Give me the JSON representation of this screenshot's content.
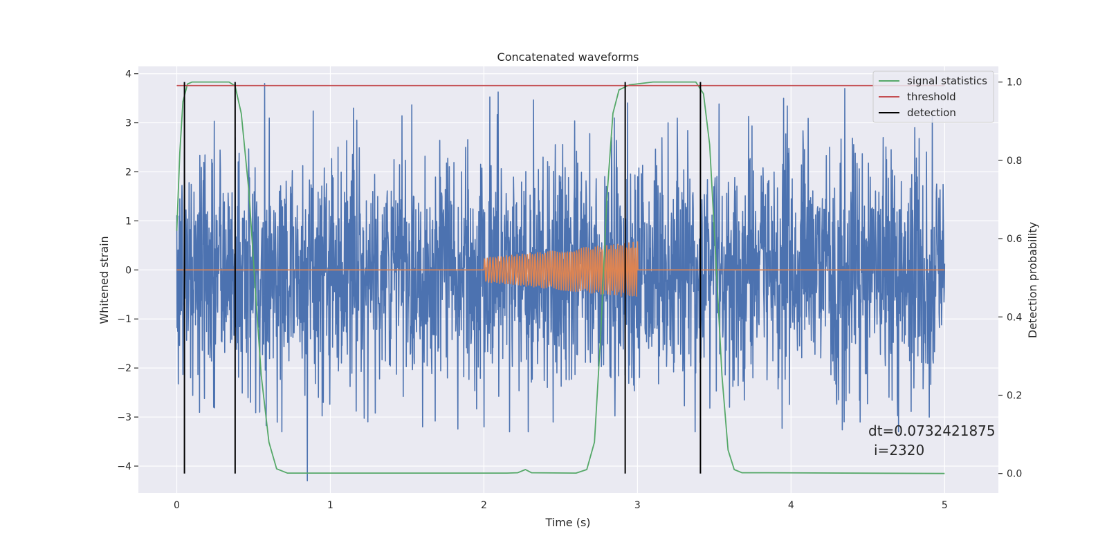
{
  "chart_data": {
    "type": "line",
    "title": "Concatenated waveforms",
    "xlabel": "Time (s)",
    "ylabel": "Whitened strain",
    "y2label": "Detection probability",
    "xlim": [
      -0.25,
      5.35
    ],
    "ylim": [
      -4.55,
      4.15
    ],
    "y2lim": [
      -0.05,
      1.04
    ],
    "x_ticks": [
      0,
      1,
      2,
      3,
      4,
      5
    ],
    "y_ticks": [
      -4,
      -3,
      -2,
      -1,
      0,
      1,
      2,
      3,
      4
    ],
    "y2_ticks": [
      0.0,
      0.2,
      0.4,
      0.6,
      0.8,
      1.0
    ],
    "x_tick_labels": [
      "0",
      "1",
      "2",
      "3",
      "4",
      "5"
    ],
    "y_tick_labels": [
      "−4",
      "−3",
      "−2",
      "−1",
      "0",
      "1",
      "2",
      "3",
      "4"
    ],
    "y2_tick_labels": [
      "0.0",
      "0.2",
      "0.4",
      "0.6",
      "0.8",
      "1.0"
    ],
    "grid": true,
    "legend_position": "top-right",
    "colors": {
      "strain": "#4c72b0",
      "injected": "#dd8452",
      "signal_statistics": "#55a868",
      "threshold": "#c44e52",
      "detection": "#000000",
      "axes_bg": "#eaeaf2",
      "grid": "#ffffff"
    },
    "series": [
      {
        "name": "",
        "axis": "left",
        "role": "strain",
        "x_range": [
          0,
          5
        ],
        "sample_count": 2500,
        "typical_amplitude": 1.2,
        "peaks": [
          [
            0.05,
            2.4
          ],
          [
            0.09,
            -2.2
          ],
          [
            0.24,
            -2.8
          ],
          [
            0.38,
            2.7
          ],
          [
            0.48,
            -2.7
          ],
          [
            0.54,
            -2.9
          ],
          [
            0.85,
            -4.3
          ],
          [
            1.15,
            3.3
          ],
          [
            1.6,
            -3.2
          ],
          [
            1.88,
            2.5
          ],
          [
            2.0,
            -3.2
          ],
          [
            2.45,
            -3.1
          ],
          [
            2.85,
            3.1
          ],
          [
            3.2,
            3.0
          ],
          [
            3.6,
            -2.8
          ],
          [
            4.35,
            3.7
          ],
          [
            4.45,
            -3.1
          ],
          [
            4.6,
            2.7
          ],
          [
            4.7,
            -3.3
          ],
          [
            4.9,
            -3.0
          ]
        ]
      },
      {
        "name": "",
        "axis": "left",
        "role": "injected",
        "x_range": [
          0,
          5
        ],
        "chirp_start": 2.0,
        "chirp_end": 3.0,
        "amplitude_start": 0.25,
        "amplitude_end": 0.58,
        "cycles": 55
      },
      {
        "name": "signal statistics",
        "axis": "right",
        "points": [
          [
            0.0,
            0.62
          ],
          [
            0.02,
            0.82
          ],
          [
            0.04,
            0.95
          ],
          [
            0.07,
            0.995
          ],
          [
            0.1,
            1.0
          ],
          [
            0.34,
            1.0
          ],
          [
            0.38,
            0.99
          ],
          [
            0.42,
            0.92
          ],
          [
            0.47,
            0.72
          ],
          [
            0.51,
            0.48
          ],
          [
            0.55,
            0.25
          ],
          [
            0.6,
            0.08
          ],
          [
            0.65,
            0.012
          ],
          [
            0.72,
            0.001
          ],
          [
            2.15,
            0.001
          ],
          [
            2.22,
            0.002
          ],
          [
            2.27,
            0.01
          ],
          [
            2.31,
            0.002
          ],
          [
            2.6,
            0.001
          ],
          [
            2.67,
            0.01
          ],
          [
            2.72,
            0.08
          ],
          [
            2.76,
            0.35
          ],
          [
            2.8,
            0.7
          ],
          [
            2.84,
            0.92
          ],
          [
            2.88,
            0.98
          ],
          [
            2.95,
            0.993
          ],
          [
            3.1,
            1.0
          ],
          [
            3.38,
            1.0
          ],
          [
            3.43,
            0.97
          ],
          [
            3.47,
            0.84
          ],
          [
            3.51,
            0.55
          ],
          [
            3.55,
            0.25
          ],
          [
            3.59,
            0.06
          ],
          [
            3.63,
            0.01
          ],
          [
            3.68,
            0.002
          ],
          [
            3.85,
            0.002
          ],
          [
            5.0,
            0.0
          ]
        ]
      },
      {
        "name": "threshold",
        "axis": "right",
        "points": [
          [
            0.0,
            0.991
          ],
          [
            5.0,
            0.991
          ]
        ]
      },
      {
        "name": "detection",
        "axis": "right",
        "vlines": [
          0.05,
          0.38,
          2.92,
          3.41
        ],
        "ymin": 0.0,
        "ymax": 1.0
      }
    ],
    "annotation": [
      "dt=0.0732421875",
      "i=2320"
    ]
  }
}
